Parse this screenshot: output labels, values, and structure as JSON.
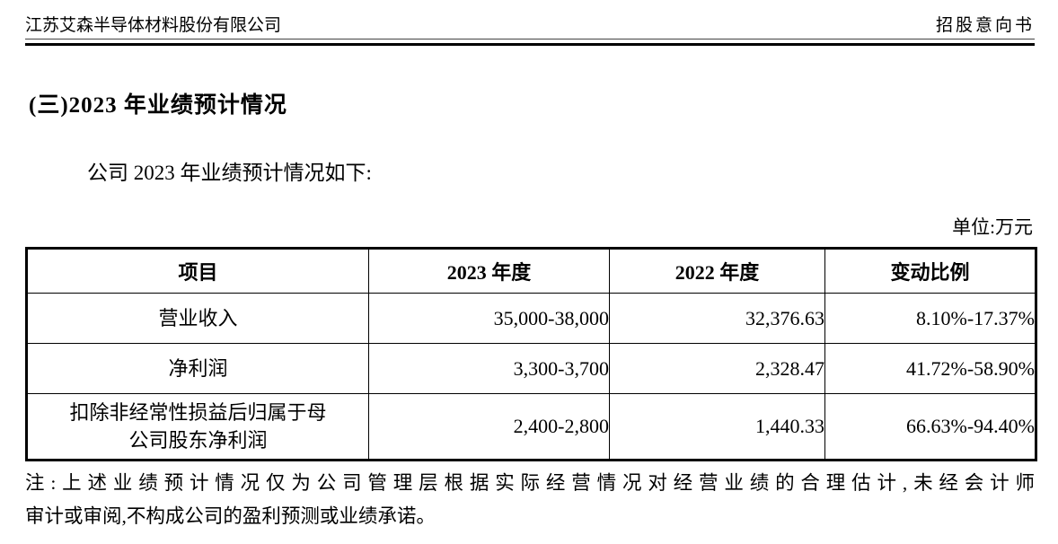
{
  "header": {
    "left": "江苏艾森半导体材料股份有限公司",
    "right": "招股意向书"
  },
  "section": {
    "heading": "(三)2023 年业绩预计情况",
    "intro": "公司 2023 年业绩预计情况如下:"
  },
  "table": {
    "unit_label": "单位:万元",
    "headers": [
      "项目",
      "2023 年度",
      "2022 年度",
      "变动比例"
    ],
    "rows": [
      {
        "cells": [
          "营业收入",
          "35,000-38,000",
          "32,376.63",
          "8.10%-17.37%"
        ]
      },
      {
        "cells": [
          "净利润",
          "3,300-3,700",
          "2,328.47",
          "41.72%-58.90%"
        ]
      },
      {
        "cells": [
          "扣除非经常性损益后归属于母\n公司股东净利润",
          "2,400-2,800",
          "1,440.33",
          "66.63%-94.40%"
        ]
      }
    ]
  },
  "note": {
    "line1": "注:上述业绩预计情况仅为公司管理层根据实际经营情况对经营业绩的合理估计,未经会计师",
    "line2": "审计或审阅,不构成公司的盈利预测或业绩承诺。"
  }
}
